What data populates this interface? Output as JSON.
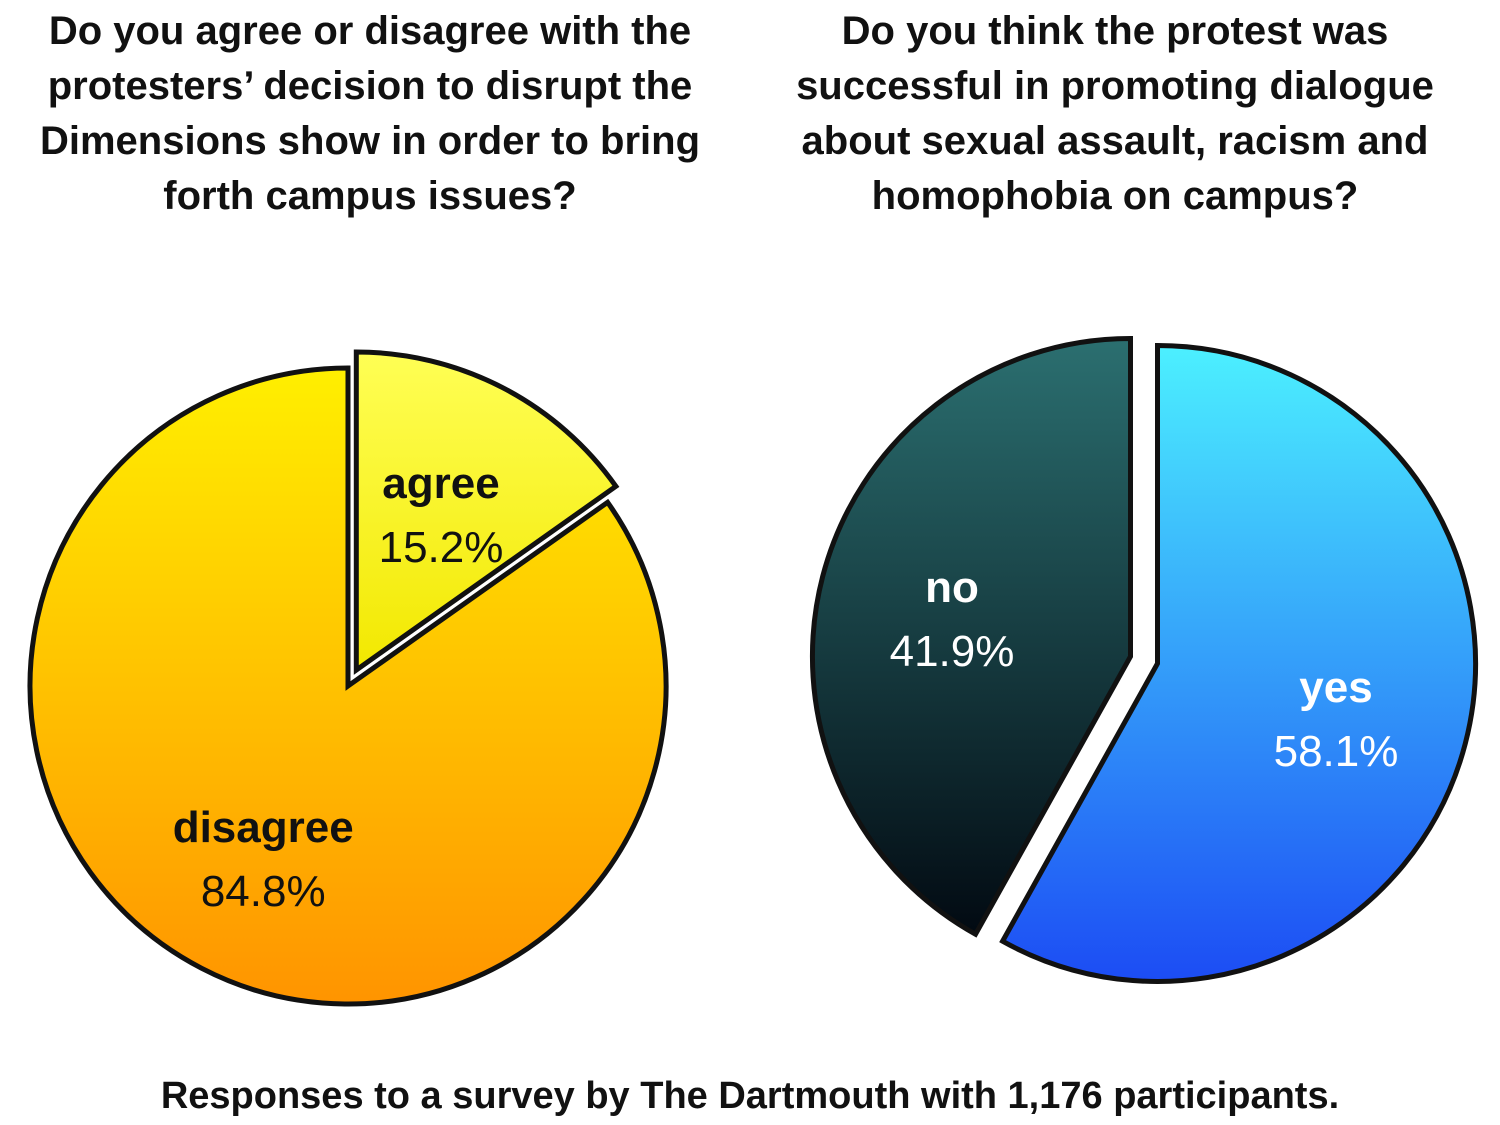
{
  "chart_data": [
    {
      "type": "pie",
      "title": "Do you agree or disagree with the protesters’ decision to disrupt the Dimensions show in order to bring forth campus issues?",
      "slices": [
        {
          "label": "agree",
          "value": 15.2,
          "value_label": "15.2%",
          "color": "#ffff10",
          "exploded": true,
          "text_color": "#111111"
        },
        {
          "label": "disagree",
          "value": 84.8,
          "value_label": "84.8%",
          "color": "#ffc400",
          "exploded": false,
          "text_color": "#111111"
        }
      ]
    },
    {
      "type": "pie",
      "title": "Do you think the protest was successful in promoting dialogue about sexual assault, racism and homophobia on campus?",
      "slices": [
        {
          "label": "no",
          "value": 41.9,
          "value_label": "41.9%",
          "color": "#123f4f",
          "exploded": true,
          "text_color": "#ffffff"
        },
        {
          "label": "yes",
          "value": 58.1,
          "value_label": "58.1%",
          "color": "#2aaaf5",
          "exploded": true,
          "text_color": "#ffffff"
        }
      ]
    }
  ],
  "footer": "Responses to a survey by The Dartmouth with 1,176 participants."
}
